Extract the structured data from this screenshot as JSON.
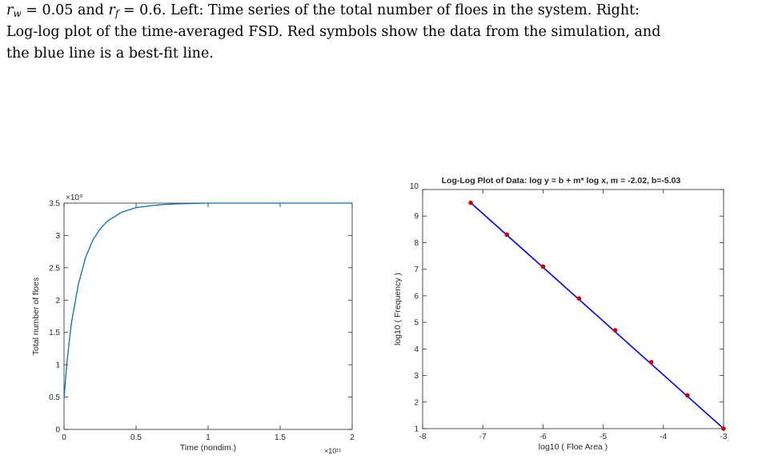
{
  "caption": {
    "line1_var1": "r",
    "line1_sub1": "w",
    "line1_val1": " = 0.05 and ",
    "line1_var2": "r",
    "line1_sub2": "f",
    "line1_rest": " = 0.6. Left: Time series of the total number of floes in the system. Right:",
    "line2": "Log-log plot of the time-averaged FSD. Red symbols show the data from the simulation, and",
    "line3": "the blue line is a best-fit line."
  },
  "colors": {
    "left_line": "#0072bd",
    "right_line": "#0000ff",
    "right_markers": "#cc0000"
  },
  "chart_data": [
    {
      "type": "line",
      "title": "",
      "xlabel": "Time (nondim.)",
      "ylabel": "Total number of floes",
      "xlim": [
        0,
        2
      ],
      "ylim": [
        0,
        3.5
      ],
      "x_multiplier": "×10¹¹",
      "y_multiplier": "×10⁹",
      "xticks": [
        "0",
        "0.5",
        "1",
        "1.5",
        "2"
      ],
      "yticks": [
        "0",
        "0.5",
        "1",
        "1.5",
        "2",
        "2.5",
        "3",
        "3.5"
      ],
      "series": [
        {
          "x": [
            0,
            0.02,
            0.05,
            0.1,
            0.15,
            0.2,
            0.25,
            0.3,
            0.4,
            0.5,
            0.6,
            0.7,
            0.8,
            1.0,
            1.2,
            1.5,
            2.0
          ],
          "y": [
            0.48,
            1.03,
            1.63,
            2.25,
            2.66,
            2.93,
            3.1,
            3.22,
            3.36,
            3.43,
            3.46,
            3.48,
            3.49,
            3.5,
            3.5,
            3.5,
            3.5
          ]
        }
      ]
    },
    {
      "type": "scatter",
      "title": "Log-Log Plot of Data: log y = b + m* log x, m = -2.02, b=-5.03",
      "xlabel": "log10 ( Floe Area )",
      "ylabel": "log10 ( Frequency )",
      "xlim": [
        -8,
        -3
      ],
      "ylim": [
        1,
        10
      ],
      "xticks": [
        "-8",
        "-7",
        "-6",
        "-5",
        "-4",
        "-3"
      ],
      "yticks": [
        "1",
        "2",
        "3",
        "4",
        "5",
        "6",
        "7",
        "8",
        "9",
        "10"
      ],
      "points": {
        "x": [
          -7.2,
          -6.6,
          -6.0,
          -5.4,
          -4.8,
          -4.2,
          -3.6,
          -3.0
        ],
        "y": [
          9.5,
          8.3,
          7.1,
          5.9,
          4.7,
          3.5,
          2.25,
          1.0
        ]
      },
      "fit_line": {
        "x": [
          -7.2,
          -3.0
        ],
        "y": [
          9.5,
          1.0
        ]
      }
    }
  ]
}
